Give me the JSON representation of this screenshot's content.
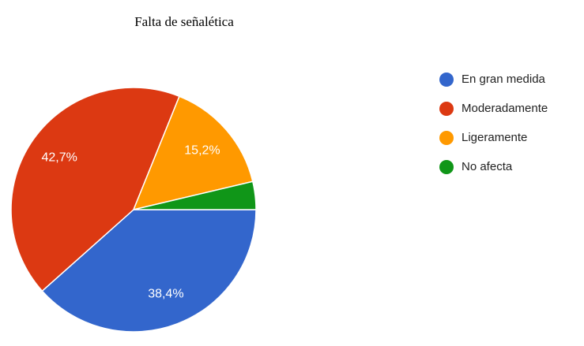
{
  "chart_data": {
    "type": "pie",
    "title": "Falta de señalética",
    "categories": [
      "En gran medida",
      "Moderadamente",
      "Ligeramente",
      "No afecta"
    ],
    "values": [
      38.4,
      42.7,
      15.2,
      3.7
    ],
    "value_labels": [
      "38,4%",
      "42,7%",
      "15,2%",
      null
    ],
    "colors": [
      "#3366cc",
      "#dc3912",
      "#ff9900",
      "#109618"
    ],
    "legend": "right"
  }
}
